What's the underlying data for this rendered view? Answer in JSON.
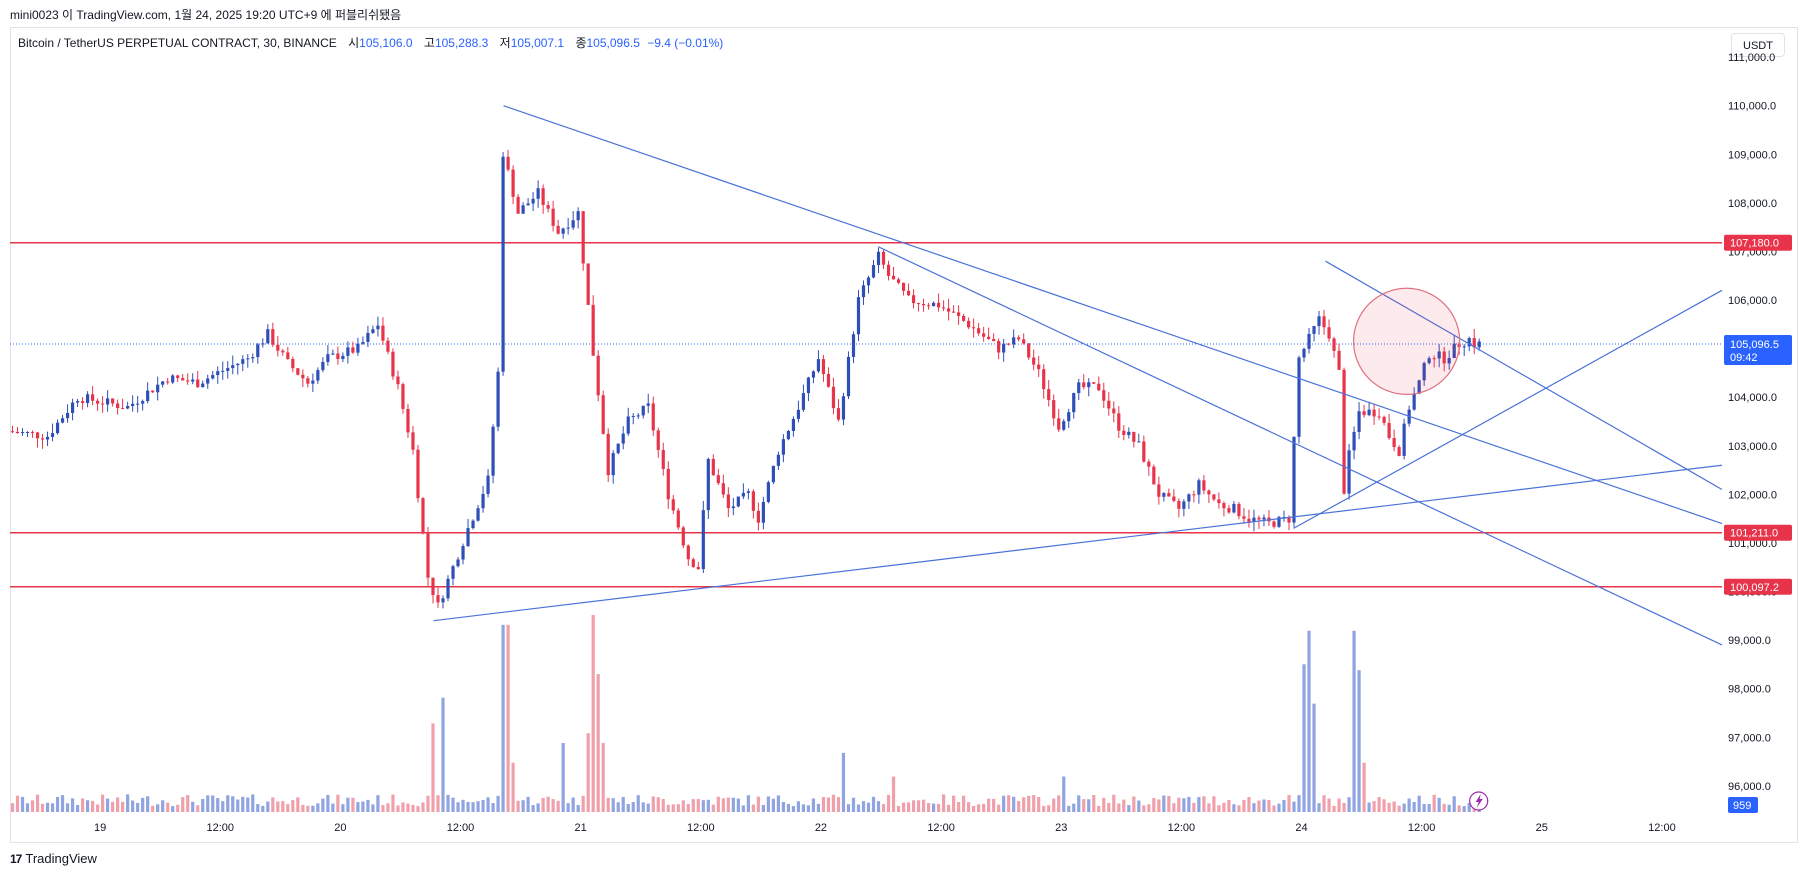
{
  "header": {
    "text": "mini0023 이 TradingView.com, 1월 24, 2025 19:20 UTC+9 에 퍼블리쉬됐음"
  },
  "legend": {
    "symbol": "Bitcoin / TetherUS PERPETUAL CONTRACT, 30, BINANCE",
    "open_label": "시",
    "open": "105,106.0",
    "high_label": "고",
    "high": "105,288.3",
    "low_label": "저",
    "low": "105,007.1",
    "close_label": "종",
    "close": "105,096.5",
    "change": "−9.4 (−0.01%)"
  },
  "currency_button": "USDT",
  "footer": {
    "brand": "TradingView",
    "logo_text": "17"
  },
  "colors": {
    "up": "#2f4fb8",
    "down": "#e8344a",
    "level": "#e8344a",
    "trend": "#4a72d8",
    "up_vol": "#8fa4e0",
    "down_vol": "#f0a0aa",
    "accent": "#2962ff"
  },
  "chart_data": {
    "type": "candlestick",
    "timeframe": "30",
    "ylim": [
      95400,
      111600
    ],
    "y_ticks": [
      96000,
      97000,
      98000,
      99000,
      100000,
      101000,
      102000,
      103000,
      104000,
      105000,
      106000,
      107000,
      108000,
      109000,
      110000,
      111000
    ],
    "y_tick_labels": [
      "96,000.0",
      "97,000.0",
      "98,000.0",
      "99,000.0",
      "100,000.0",
      "101,000.0",
      "102,000.0",
      "103,000.0",
      "104,000.0",
      "105,000.0",
      "106,000.0",
      "107,000.0",
      "108,000.0",
      "109,000.0",
      "110,000.0",
      "111,000.0"
    ],
    "x_tick_labels": [
      "19",
      "12:00",
      "20",
      "12:00",
      "21",
      "12:00",
      "22",
      "12:00",
      "23",
      "12:00",
      "24",
      "12:00",
      "25",
      "12:00"
    ],
    "x_ticks_hours": [
      24,
      36,
      48,
      60,
      72,
      84,
      96,
      108,
      120,
      132,
      144,
      156,
      168,
      180
    ],
    "x_start_hours": 15,
    "x_end_hours": 186,
    "horizontal_levels": [
      {
        "price": 107180.0,
        "label": "107,180.0"
      },
      {
        "price": 101211.0,
        "label": "101,211.0"
      },
      {
        "price": 100097.2,
        "label": "100,097.2"
      }
    ],
    "last_price": {
      "price": 105096.5,
      "label": "105,096.5",
      "countdown": "09:42"
    },
    "volume_badge": "959",
    "trendlines": [
      {
        "from": [
          64.3,
          110000
        ],
        "to": [
          186,
          101400
        ]
      },
      {
        "from": [
          101.7,
          107100
        ],
        "to": [
          186,
          98900
        ]
      },
      {
        "from": [
          57.3,
          99400
        ],
        "to": [
          186,
          102600
        ]
      },
      {
        "from": [
          143.2,
          101300
        ],
        "to": [
          186,
          106200
        ]
      },
      {
        "from": [
          146.4,
          106800
        ],
        "to": [
          186,
          102100
        ]
      }
    ],
    "highlight_circle": {
      "center": [
        154.5,
        105150
      ],
      "radius_hours": 5.3
    },
    "anchors": [
      [
        15,
        103300
      ],
      [
        19,
        103200
      ],
      [
        22,
        104000
      ],
      [
        27,
        103800
      ],
      [
        31,
        104400
      ],
      [
        34,
        104300
      ],
      [
        37,
        104600
      ],
      [
        39,
        104800
      ],
      [
        41,
        105300
      ],
      [
        43,
        104700
      ],
      [
        45,
        104300
      ],
      [
        47,
        104800
      ],
      [
        50,
        105000
      ],
      [
        52,
        105500
      ],
      [
        54,
        104200
      ],
      [
        55.5,
        102900
      ],
      [
        57,
        100300
      ],
      [
        58,
        99700
      ],
      [
        61,
        101300
      ],
      [
        63,
        102300
      ],
      [
        64,
        104500
      ],
      [
        64.3,
        109200
      ],
      [
        66,
        107800
      ],
      [
        68,
        108200
      ],
      [
        70,
        107400
      ],
      [
        72,
        107800
      ],
      [
        73.5,
        104900
      ],
      [
        75,
        102500
      ],
      [
        77,
        103500
      ],
      [
        79,
        103800
      ],
      [
        81,
        102000
      ],
      [
        83,
        100700
      ],
      [
        84,
        100500
      ],
      [
        85,
        102700
      ],
      [
        87,
        101700
      ],
      [
        89,
        102000
      ],
      [
        90,
        101500
      ],
      [
        92,
        102900
      ],
      [
        94,
        103800
      ],
      [
        96,
        104800
      ],
      [
        98,
        103500
      ],
      [
        100,
        106000
      ],
      [
        102,
        106900
      ],
      [
        103,
        106500
      ],
      [
        105,
        106000
      ],
      [
        108,
        105900
      ],
      [
        111,
        105500
      ],
      [
        114,
        105000
      ],
      [
        116,
        105200
      ],
      [
        118,
        104500
      ],
      [
        120,
        103400
      ],
      [
        122,
        104200
      ],
      [
        124,
        104200
      ],
      [
        126,
        103400
      ],
      [
        128,
        103000
      ],
      [
        130,
        102000
      ],
      [
        132,
        101700
      ],
      [
        134,
        102200
      ],
      [
        136,
        101800
      ],
      [
        137.5,
        101700
      ],
      [
        139,
        101500
      ],
      [
        141,
        101400
      ],
      [
        143,
        101500
      ],
      [
        144,
        104800
      ],
      [
        146,
        105600
      ],
      [
        147,
        105300
      ],
      [
        148,
        104500
      ],
      [
        148.5,
        102100
      ],
      [
        149,
        102800
      ],
      [
        150,
        103700
      ],
      [
        152,
        103700
      ],
      [
        153,
        103200
      ],
      [
        154,
        102900
      ],
      [
        155,
        103800
      ],
      [
        156,
        104300
      ],
      [
        157,
        104900
      ],
      [
        158.5,
        104800
      ],
      [
        160,
        105100
      ],
      [
        161,
        105200
      ],
      [
        161.5,
        105096
      ]
    ],
    "volume_spikes": [
      [
        57,
        0.45
      ],
      [
        58,
        0.58
      ],
      [
        64.3,
        0.95
      ],
      [
        65,
        0.25
      ],
      [
        70,
        0.35
      ],
      [
        72.6,
        0.4
      ],
      [
        73,
        1.0
      ],
      [
        73.4,
        0.7
      ],
      [
        74,
        0.35
      ],
      [
        98,
        0.3
      ],
      [
        103,
        0.18
      ],
      [
        120,
        0.18
      ],
      [
        144.4,
        0.92
      ],
      [
        144,
        0.75
      ],
      [
        145,
        0.55
      ],
      [
        149.2,
        0.92
      ],
      [
        149.6,
        0.72
      ],
      [
        150,
        0.25
      ]
    ]
  }
}
